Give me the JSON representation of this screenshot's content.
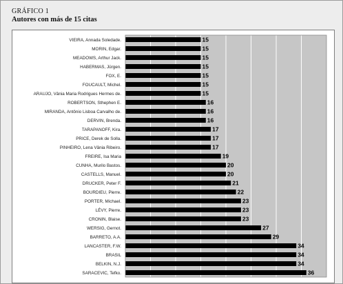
{
  "figure": {
    "label": "GRÁFICO 1",
    "title": "Autores con más de 15 citas"
  },
  "colors": {
    "bar": "#000000",
    "plot_background": "#c6c6c6",
    "gridline": "#ffffff",
    "page_background": "#ececec"
  },
  "chart_data": {
    "type": "bar",
    "orientation": "horizontal",
    "title": "",
    "xlabel": "",
    "ylabel": "",
    "xlim": [
      0,
      40
    ],
    "grid": true,
    "legend": "none",
    "categories": [
      "VIEIRA, Annada Soledade.",
      "MORIN, Edgar.",
      "MEADOWS, Arthur Jack.",
      "HABERMAS, Jürgen.",
      "FOX, E.",
      "FOUCAULT, Michel.",
      "ARAUJO, Vânia Maria Rodrigues Hermes de.",
      "ROBERTSON, Sthephen E.",
      "MIRANDA, Antônio Lisboa Carvalho de.",
      "DERVIN, Brenda.",
      "TARAPANOFF, Kira.",
      "PRICE, Derek de Solla.",
      "PINHEIRO, Lena Vânia Ribeiro.",
      "FREIRE, Isa Maria",
      "CUNHA, Murilo Bastos.",
      "CASTELLS, Manuel.",
      "DRUCKER, Peter F.",
      "BOURDIEU, Pierre.",
      "PORTER, Michael.",
      "LÉVY, Pierre.",
      "CRONIN, Blaise.",
      "WERSIG, Gernot.",
      "BARRETO, A.A.",
      "LANCASTER, F.W.",
      "BRASIL",
      "BELKIN, N.J.",
      "SARACEVIC, Tefko."
    ],
    "values": [
      15,
      15,
      15,
      15,
      15,
      15,
      15,
      16,
      16,
      16,
      17,
      17,
      17,
      19,
      20,
      20,
      21,
      22,
      23,
      23,
      23,
      27,
      29,
      34,
      34,
      34,
      36
    ]
  }
}
